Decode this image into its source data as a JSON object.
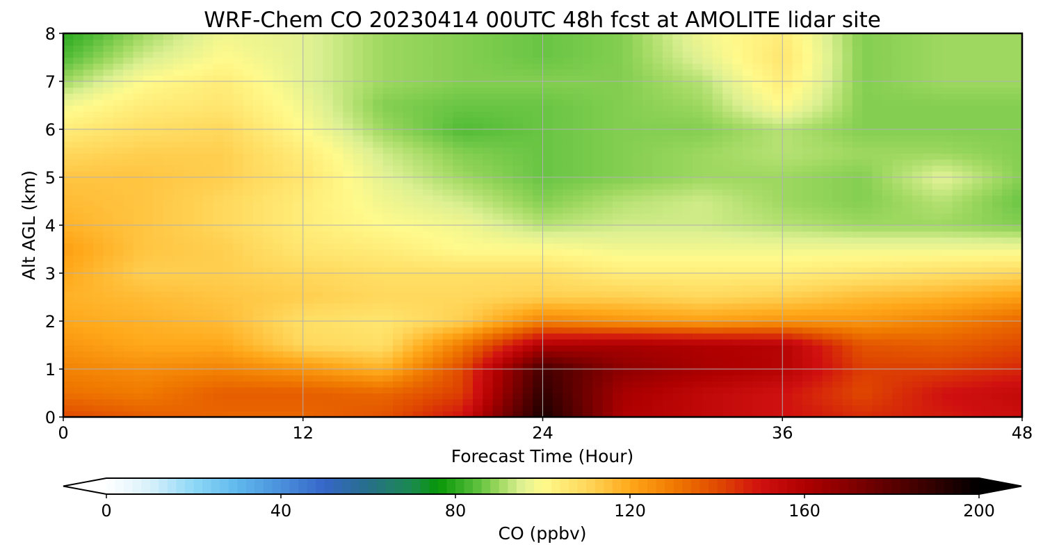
{
  "chart_data": {
    "type": "heatmap",
    "title": "WRF-Chem CO  20230414 00UTC 48h fcst at AMOLITE lidar site",
    "xlabel": "Forecast Time (Hour)",
    "ylabel": "Alt AGL (km)",
    "xlim": [
      0,
      48
    ],
    "ylim": [
      0,
      8
    ],
    "xticks": [
      "0",
      "12",
      "24",
      "36",
      "48"
    ],
    "yticks": [
      "0",
      "1",
      "2",
      "3",
      "4",
      "5",
      "6",
      "7",
      "8"
    ],
    "grid": true,
    "x": [
      0,
      4,
      8,
      12,
      16,
      20,
      24,
      28,
      32,
      36,
      40,
      44,
      48
    ],
    "y": [
      0,
      0.5,
      1,
      1.5,
      2,
      2.5,
      3,
      3.5,
      4,
      4.5,
      5,
      5.5,
      6,
      6.5,
      7,
      7.5,
      8
    ],
    "z": [
      [
        140,
        136,
        134,
        134,
        138,
        150,
        195,
        160,
        155,
        150,
        145,
        148,
        152
      ],
      [
        132,
        130,
        136,
        136,
        134,
        142,
        190,
        162,
        155,
        150,
        140,
        150,
        154
      ],
      [
        128,
        126,
        128,
        124,
        118,
        140,
        185,
        168,
        162,
        158,
        142,
        142,
        146
      ],
      [
        124,
        120,
        120,
        110,
        108,
        130,
        160,
        162,
        160,
        158,
        138,
        136,
        140
      ],
      [
        120,
        118,
        116,
        108,
        106,
        112,
        128,
        124,
        122,
        124,
        124,
        128,
        134
      ],
      [
        118,
        116,
        114,
        112,
        110,
        110,
        112,
        112,
        110,
        112,
        116,
        118,
        122
      ],
      [
        120,
        112,
        112,
        110,
        108,
        108,
        108,
        104,
        104,
        104,
        106,
        108,
        110
      ],
      [
        122,
        114,
        112,
        106,
        104,
        100,
        100,
        98,
        98,
        98,
        98,
        98,
        98
      ],
      [
        118,
        114,
        110,
        104,
        100,
        98,
        92,
        94,
        94,
        92,
        90,
        90,
        88
      ],
      [
        116,
        114,
        110,
        104,
        98,
        94,
        88,
        92,
        94,
        90,
        88,
        92,
        86
      ],
      [
        114,
        114,
        112,
        106,
        96,
        90,
        86,
        88,
        90,
        90,
        88,
        96,
        88
      ],
      [
        110,
        112,
        112,
        104,
        94,
        88,
        86,
        88,
        90,
        92,
        90,
        90,
        88
      ],
      [
        104,
        108,
        110,
        100,
        90,
        84,
        86,
        88,
        88,
        92,
        88,
        88,
        88
      ],
      [
        98,
        104,
        106,
        98,
        88,
        86,
        86,
        88,
        90,
        100,
        88,
        88,
        88
      ],
      [
        90,
        100,
        104,
        96,
        90,
        88,
        88,
        88,
        92,
        104,
        88,
        90,
        90
      ],
      [
        84,
        94,
        100,
        96,
        90,
        88,
        86,
        88,
        96,
        106,
        88,
        90,
        90
      ],
      [
        80,
        90,
        98,
        96,
        90,
        88,
        86,
        88,
        98,
        104,
        88,
        90,
        90
      ]
    ],
    "colorbar": {
      "label": "CO  (ppbv)",
      "min": 0,
      "max": 200,
      "ticks": [
        "0",
        "40",
        "80",
        "120",
        "160",
        "200"
      ],
      "extend": "both",
      "stops": [
        {
          "v": 0,
          "c": "#ffffff"
        },
        {
          "v": 10,
          "c": "#d8f0fb"
        },
        {
          "v": 20,
          "c": "#8ed8f6"
        },
        {
          "v": 30,
          "c": "#5fb8ec"
        },
        {
          "v": 40,
          "c": "#4a90dc"
        },
        {
          "v": 50,
          "c": "#3566c8"
        },
        {
          "v": 60,
          "c": "#276f8a"
        },
        {
          "v": 70,
          "c": "#1a8a4e"
        },
        {
          "v": 76,
          "c": "#079607"
        },
        {
          "v": 80,
          "c": "#2aa81e"
        },
        {
          "v": 85,
          "c": "#5cc03c"
        },
        {
          "v": 90,
          "c": "#9ed860"
        },
        {
          "v": 95,
          "c": "#dcf092"
        },
        {
          "v": 100,
          "c": "#fffa8c"
        },
        {
          "v": 110,
          "c": "#ffd85c"
        },
        {
          "v": 120,
          "c": "#ffa81a"
        },
        {
          "v": 130,
          "c": "#f07a00"
        },
        {
          "v": 140,
          "c": "#e04a00"
        },
        {
          "v": 150,
          "c": "#d01010"
        },
        {
          "v": 160,
          "c": "#b00000"
        },
        {
          "v": 175,
          "c": "#700000"
        },
        {
          "v": 190,
          "c": "#300000"
        },
        {
          "v": 200,
          "c": "#000000"
        }
      ]
    }
  }
}
